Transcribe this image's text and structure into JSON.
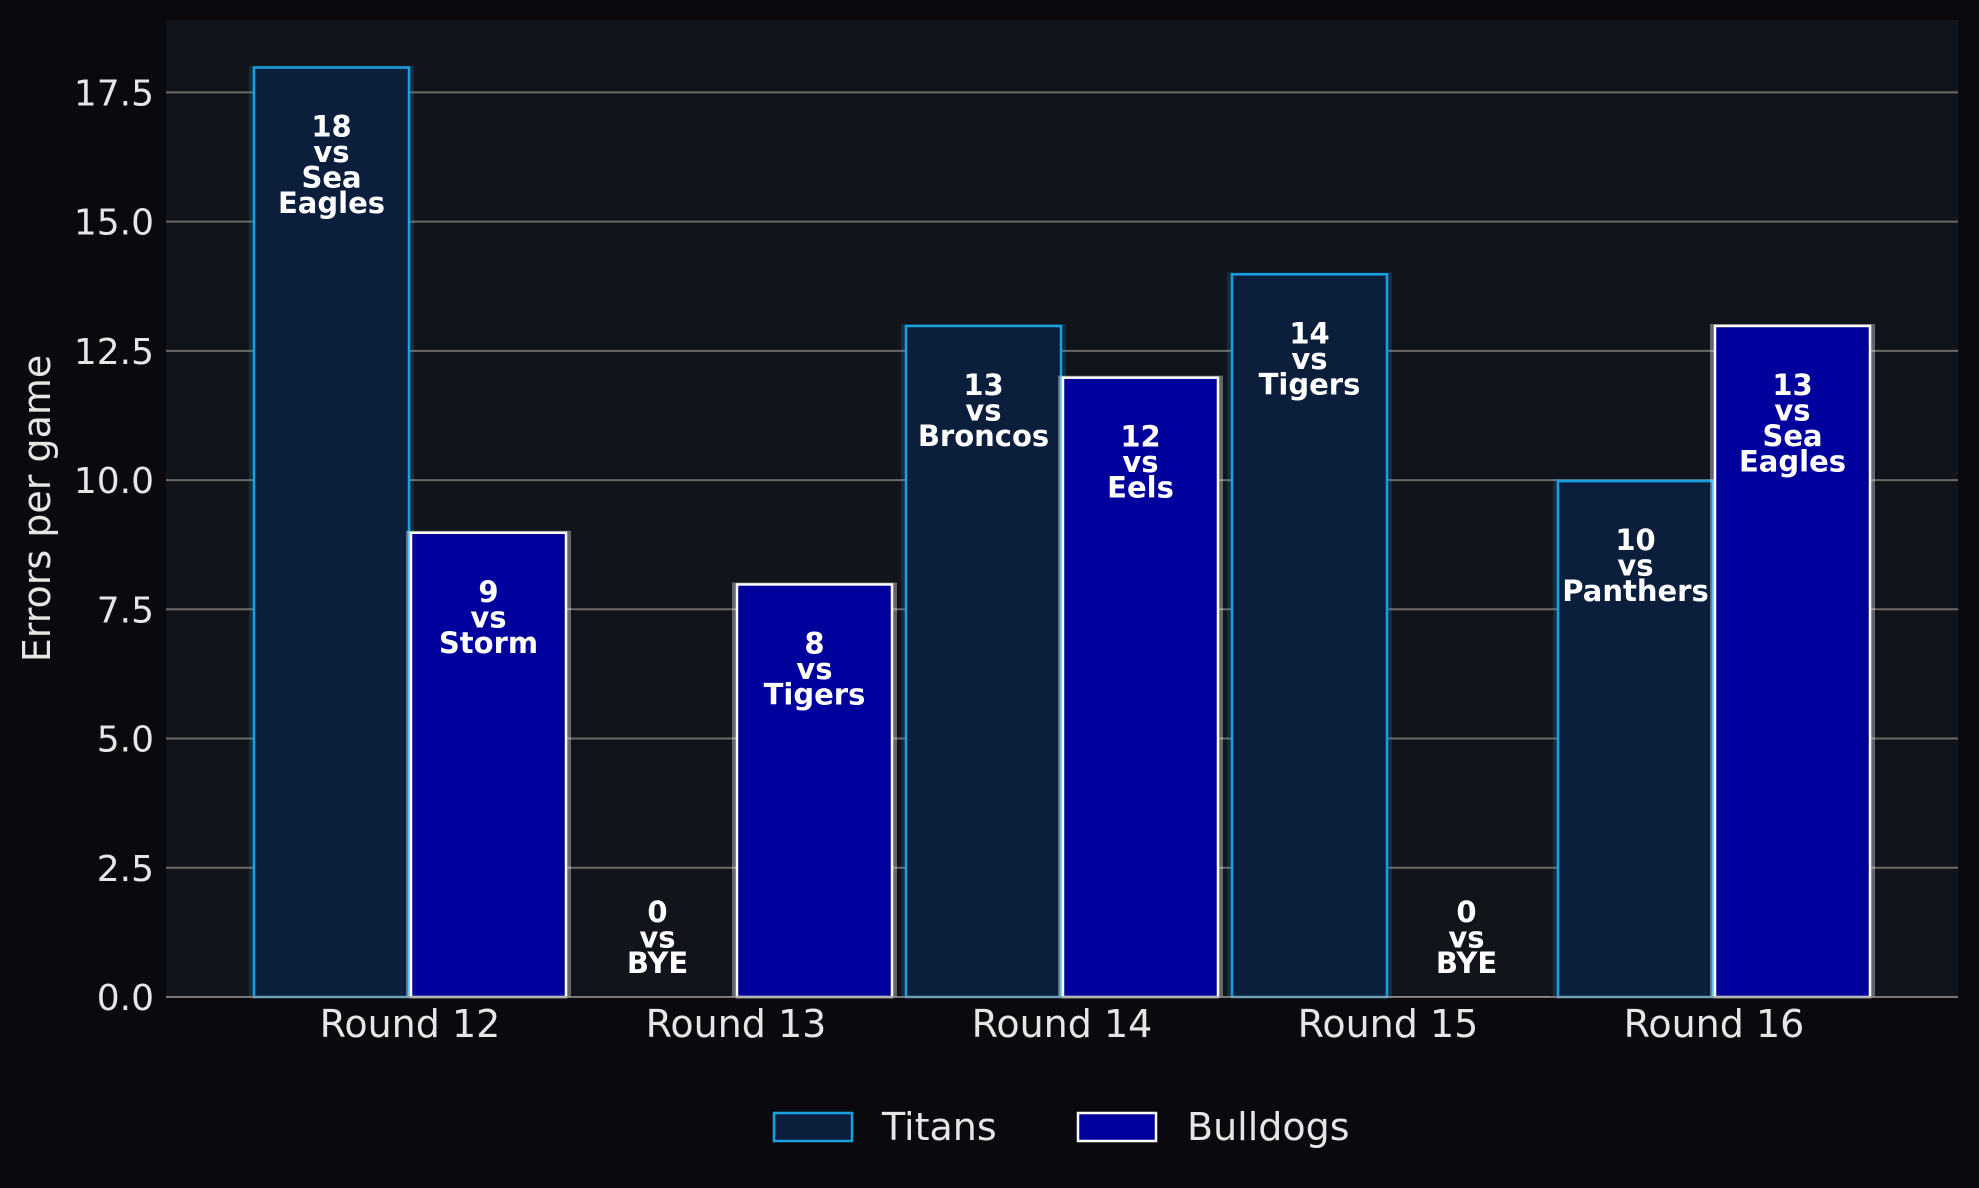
{
  "chart_data": {
    "type": "bar",
    "categories": [
      "Round 12",
      "Round 13",
      "Round 14",
      "Round 15",
      "Round 16"
    ],
    "ylabel": "Errors per game",
    "xlabel": "",
    "ylim": [
      0,
      18.9
    ],
    "yticks": [
      "0.0",
      "2.5",
      "5.0",
      "7.5",
      "10.0",
      "12.5",
      "15.0",
      "17.5"
    ],
    "grid": true,
    "legend_position": "bottom-center",
    "series": [
      {
        "name": "Titans",
        "values": [
          18,
          0,
          13,
          14,
          10
        ],
        "opponents": [
          "Sea Eagles",
          "BYE",
          "Broncos",
          "Tigers",
          "Panthers"
        ],
        "fill": "#0b1f3d",
        "edge": "#1aa0e0"
      },
      {
        "name": "Bulldogs",
        "values": [
          9,
          8,
          12,
          0,
          13
        ],
        "opponents": [
          "Storm",
          "Tigers",
          "Eels",
          "BYE",
          "Sea Eagles"
        ],
        "fill": "#00009c",
        "edge": "#ffffff"
      }
    ],
    "connector": "vs"
  },
  "colors": {
    "page_bg": "#0a0a0e",
    "plot_bg": "#12141b",
    "grid": "#6a6a6a",
    "text": "#e6e6e6"
  }
}
